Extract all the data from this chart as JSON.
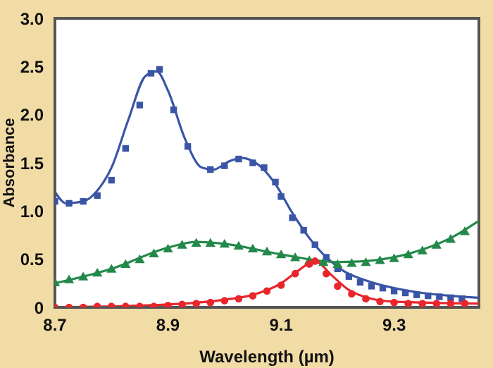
{
  "chart_data": {
    "type": "scatter",
    "xlabel": "Wavelength (µm)",
    "ylabel": "Absorbance",
    "xlim": [
      8.7,
      9.45
    ],
    "xticks": [
      8.7,
      8.9,
      9.1,
      9.3
    ],
    "ylim": [
      0,
      3
    ],
    "yticks": [
      0,
      {
        "value": 0.5,
        "label": "0.5"
      },
      {
        "value": 1,
        "label": "1.0"
      },
      {
        "value": 1.5,
        "label": "1.5"
      },
      {
        "value": 2,
        "label": "2.0"
      },
      {
        "value": 2.5,
        "label": "2.5"
      },
      {
        "value": 3,
        "label": "3.0"
      }
    ],
    "series": [
      {
        "type": "line",
        "color": "#3a55a6",
        "marker": "none",
        "x": [
          8.7,
          8.72,
          8.75,
          8.78,
          8.8,
          8.83,
          8.86,
          8.88,
          8.9,
          8.93,
          8.96,
          8.98,
          9.01,
          9.03,
          9.06,
          9.09,
          9.12,
          9.15,
          9.18,
          9.21,
          9.25,
          9.3,
          9.35,
          9.4,
          9.45
        ],
        "values": [
          1.2,
          1.08,
          1.1,
          1.25,
          1.45,
          1.95,
          2.4,
          2.45,
          2.25,
          1.75,
          1.45,
          1.43,
          1.52,
          1.55,
          1.48,
          1.28,
          0.98,
          0.72,
          0.52,
          0.38,
          0.28,
          0.2,
          0.15,
          0.12,
          0.1
        ]
      },
      {
        "color": "#3a55a6",
        "marker": "square",
        "x": [
          8.7,
          8.725,
          8.75,
          8.775,
          8.8,
          8.825,
          8.85,
          8.87,
          8.885,
          8.91,
          8.935,
          8.975,
          9.0,
          9.025,
          9.05,
          9.07,
          9.09,
          9.1,
          9.12,
          9.14,
          9.16,
          9.18,
          9.2,
          9.22,
          9.24,
          9.26,
          9.28,
          9.3,
          9.32,
          9.34,
          9.36,
          9.38,
          9.4,
          9.42
        ],
        "values": [
          1.1,
          1.08,
          1.1,
          1.16,
          1.32,
          1.65,
          2.1,
          2.43,
          2.47,
          2.05,
          1.67,
          1.43,
          1.47,
          1.54,
          1.5,
          1.45,
          1.3,
          1.15,
          0.93,
          0.8,
          0.65,
          0.52,
          0.4,
          0.32,
          0.26,
          0.22,
          0.2,
          0.17,
          0.15,
          0.13,
          0.12,
          0.11,
          0.1,
          0.09
        ]
      },
      {
        "type": "line",
        "color": "#23894a",
        "marker": "none",
        "x": [
          8.7,
          8.8,
          8.9,
          8.95,
          9.0,
          9.1,
          9.2,
          9.25,
          9.3,
          9.35,
          9.4,
          9.45
        ],
        "values": [
          0.25,
          0.4,
          0.62,
          0.68,
          0.66,
          0.55,
          0.47,
          0.48,
          0.52,
          0.6,
          0.72,
          0.9
        ]
      },
      {
        "color": "#23894a",
        "marker": "triangle",
        "x": [
          8.7,
          8.725,
          8.75,
          8.775,
          8.8,
          8.825,
          8.85,
          8.875,
          8.9,
          8.925,
          8.95,
          8.975,
          9.0,
          9.025,
          9.05,
          9.075,
          9.1,
          9.125,
          9.15,
          9.175,
          9.2,
          9.225,
          9.25,
          9.275,
          9.3,
          9.325,
          9.35,
          9.375,
          9.4,
          9.425
        ],
        "values": [
          0.25,
          0.28,
          0.31,
          0.35,
          0.39,
          0.44,
          0.49,
          0.55,
          0.6,
          0.64,
          0.66,
          0.66,
          0.65,
          0.63,
          0.6,
          0.57,
          0.54,
          0.51,
          0.48,
          0.46,
          0.44,
          0.45,
          0.46,
          0.48,
          0.5,
          0.54,
          0.58,
          0.64,
          0.7,
          0.78
        ]
      },
      {
        "type": "line",
        "color": "#e8262b",
        "marker": "none",
        "x": [
          8.7,
          8.9,
          9.0,
          9.05,
          9.1,
          9.13,
          9.16,
          9.19,
          9.22,
          9.26,
          9.3,
          9.45
        ],
        "values": [
          0.0,
          0.03,
          0.08,
          0.13,
          0.25,
          0.38,
          0.48,
          0.33,
          0.18,
          0.09,
          0.06,
          0.04
        ]
      },
      {
        "color": "#e8262b",
        "marker": "circle",
        "x": [
          8.7,
          8.725,
          8.75,
          8.775,
          8.8,
          8.825,
          8.85,
          8.875,
          8.9,
          8.925,
          8.95,
          8.975,
          9.0,
          9.025,
          9.05,
          9.075,
          9.1,
          9.125,
          9.15,
          9.16,
          9.18,
          9.2,
          9.225,
          9.25,
          9.275,
          9.3,
          9.325,
          9.35,
          9.375,
          9.4,
          9.425
        ],
        "values": [
          0.0,
          0.0,
          0.0,
          0.01,
          0.01,
          0.01,
          0.01,
          0.01,
          0.02,
          0.03,
          0.04,
          0.05,
          0.07,
          0.09,
          0.12,
          0.17,
          0.23,
          0.35,
          0.45,
          0.48,
          0.35,
          0.22,
          0.14,
          0.09,
          0.06,
          0.05,
          0.04,
          0.04,
          0.04,
          0.04,
          0.04
        ]
      }
    ]
  }
}
